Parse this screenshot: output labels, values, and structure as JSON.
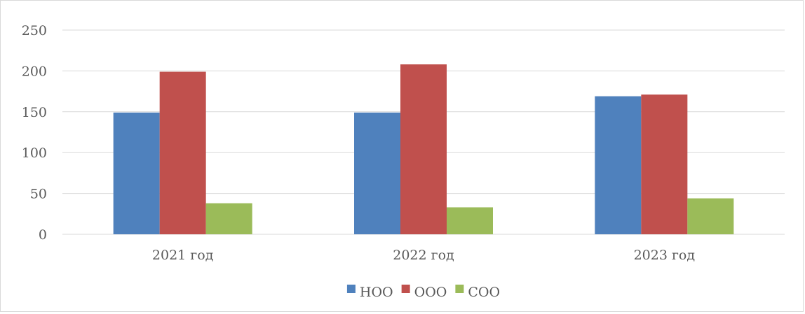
{
  "chart_data": {
    "type": "bar",
    "categories": [
      "2021 год",
      "2022 год",
      "2023 год"
    ],
    "series": [
      {
        "name": "НОО",
        "values": [
          149,
          149,
          169
        ],
        "color": "#4f81bd"
      },
      {
        "name": "ООО",
        "values": [
          199,
          208,
          171
        ],
        "color": "#c0504d"
      },
      {
        "name": "СОО",
        "values": [
          38,
          33,
          44
        ],
        "color": "#9bbb59"
      }
    ],
    "title": "",
    "xlabel": "",
    "ylabel": "",
    "ylim": [
      0,
      250
    ],
    "yticks": [
      "0",
      "50",
      "100",
      "150",
      "200",
      "250"
    ],
    "grid": true,
    "legend_position": "bottom"
  }
}
